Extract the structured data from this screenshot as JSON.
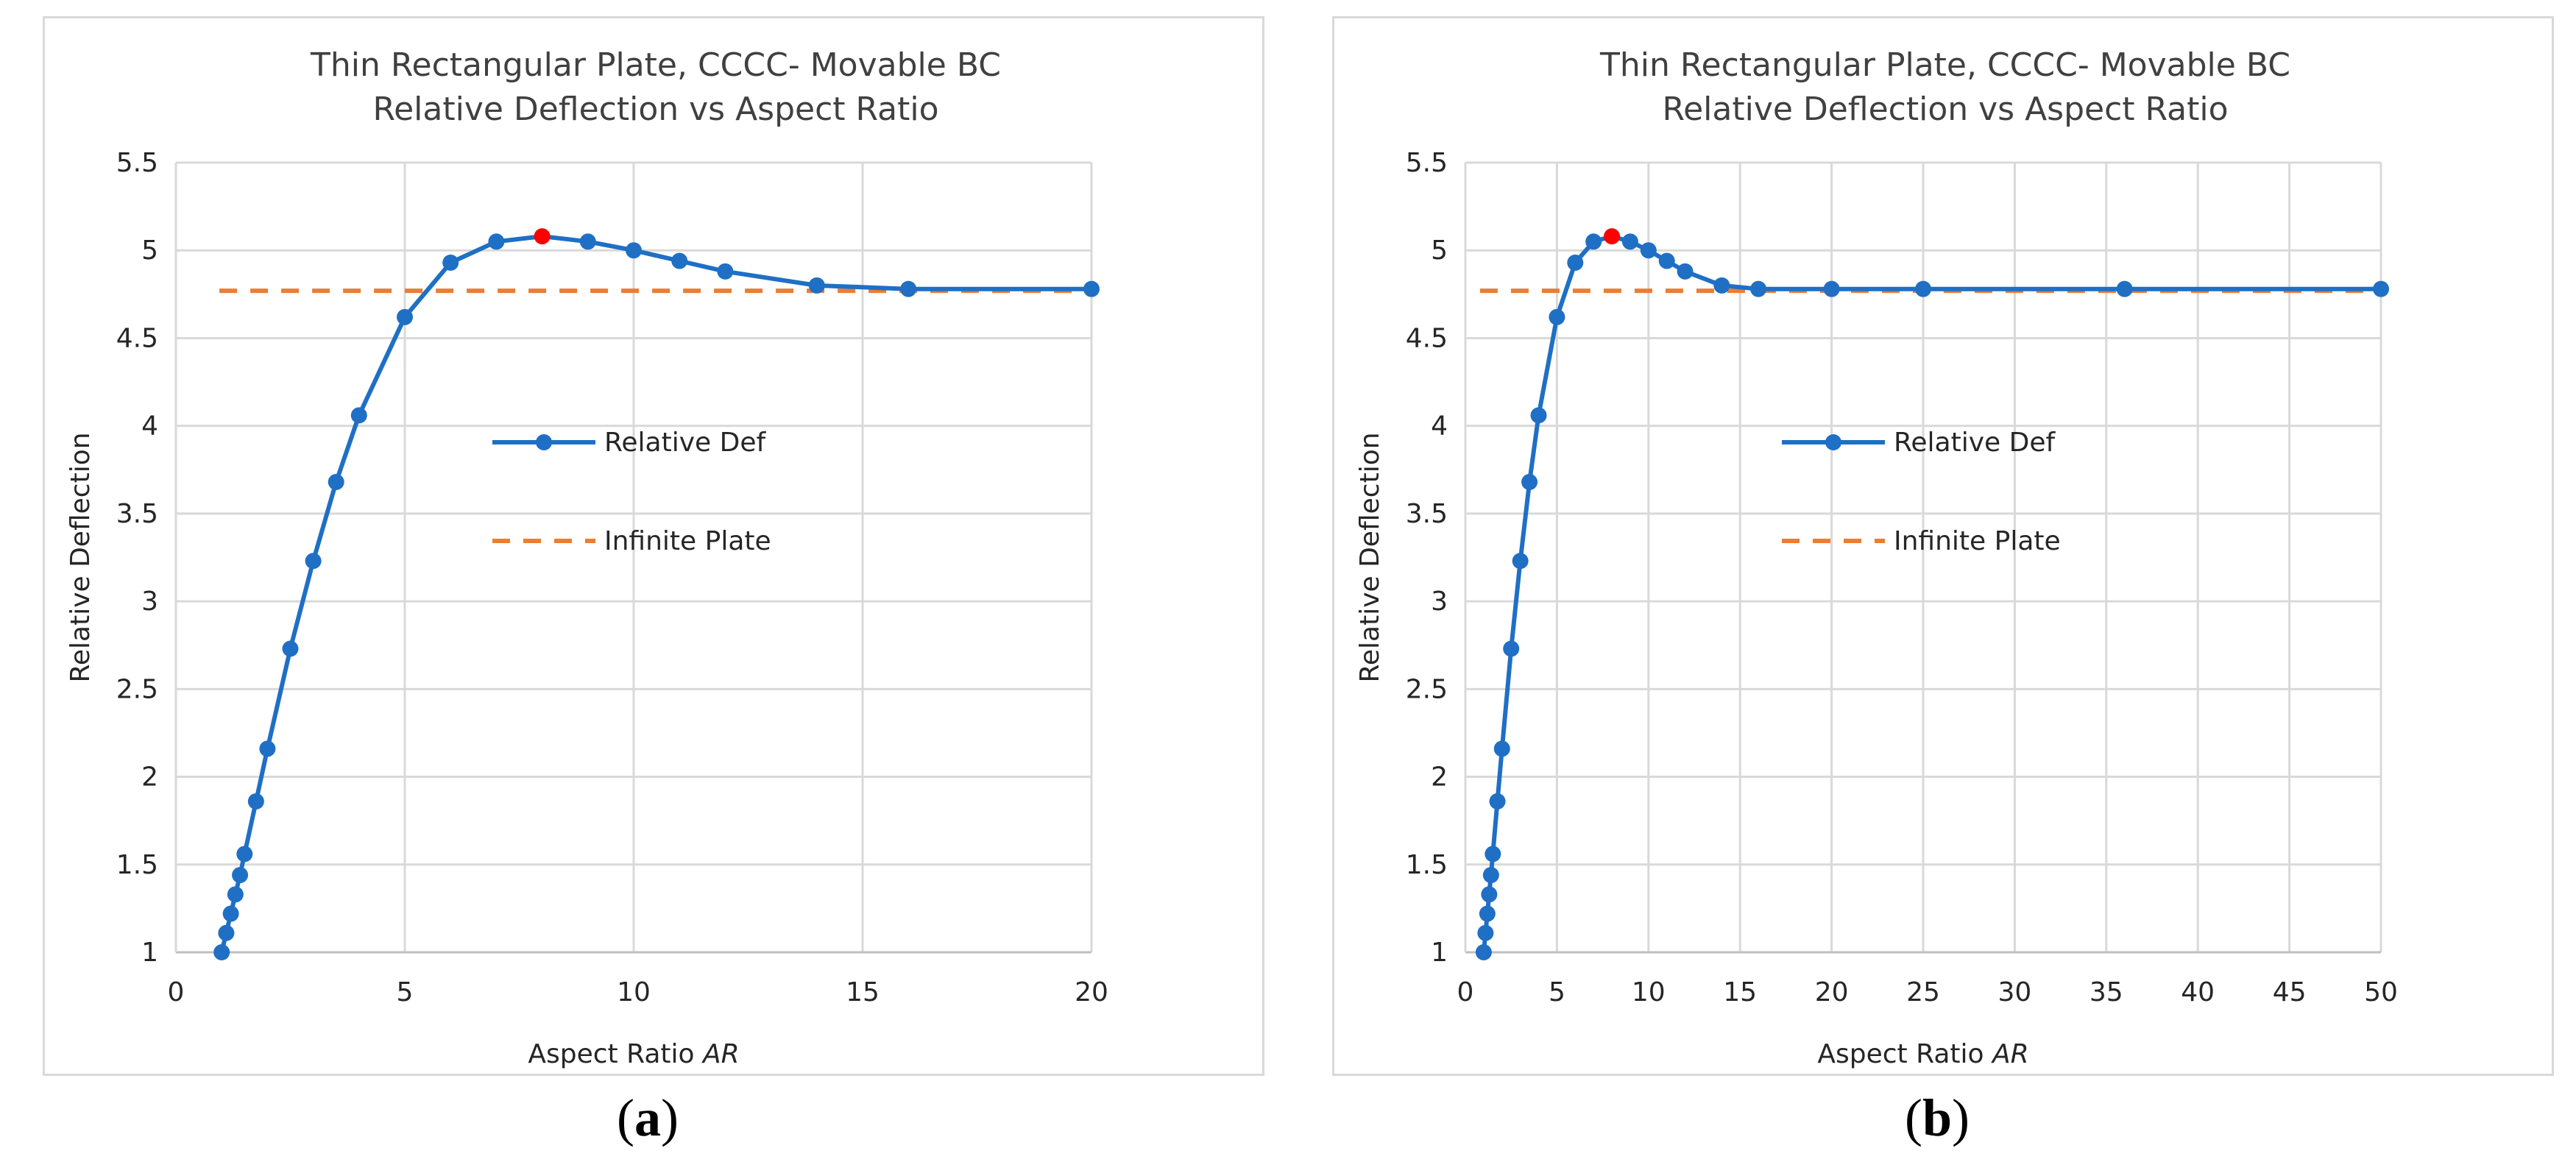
{
  "chart_data": [
    {
      "type": "line",
      "panel_label": "a",
      "title_line1": "Thin Rectangular Plate, CCCC- Movable BC",
      "title_line2": "Relative Deflection vs Aspect Ratio",
      "xlabel": "Aspect Ratio",
      "xlabel_italic": "AR",
      "ylabel": "Relative Deflection",
      "xlim": [
        0,
        20
      ],
      "ylim": [
        1,
        5.5
      ],
      "xticks": [
        0,
        5,
        10,
        15,
        20
      ],
      "xtick_labels": [
        "0",
        "5",
        "10",
        "15",
        "20"
      ],
      "yticks": [
        1,
        1.5,
        2,
        2.5,
        3,
        3.5,
        4,
        4.5,
        5,
        5.5
      ],
      "ytick_labels": [
        "1",
        "1.5",
        "2",
        "2.5",
        "3",
        "3.5",
        "4",
        "4.5",
        "5",
        "5.5"
      ],
      "grid": true,
      "legend_position": "center",
      "series": [
        {
          "name": "Relative Def",
          "style": "solid-markers",
          "color": "#1F6FC5",
          "x": [
            1,
            1.1,
            1.2,
            1.3,
            1.4,
            1.5,
            1.75,
            2,
            2.5,
            3,
            3.5,
            4,
            5,
            6,
            7,
            8,
            9,
            10,
            11,
            12,
            14,
            16,
            20
          ],
          "y": [
            1.0,
            1.11,
            1.22,
            1.33,
            1.44,
            1.56,
            1.86,
            2.16,
            2.73,
            3.23,
            3.68,
            4.06,
            4.62,
            4.93,
            5.05,
            5.08,
            5.05,
            5.0,
            4.94,
            4.88,
            4.8,
            4.78,
            4.78
          ],
          "highlight_index": 15,
          "highlight_color": "#FF0000"
        },
        {
          "name": "Infinite Plate",
          "style": "dashed",
          "color": "#ED7D31",
          "x": [
            0.95,
            20
          ],
          "y": [
            4.77,
            4.77
          ]
        }
      ]
    },
    {
      "type": "line",
      "panel_label": "b",
      "title_line1": "Thin Rectangular Plate, CCCC- Movable BC",
      "title_line2": "Relative Deflection vs Aspect Ratio",
      "xlabel": "Aspect Ratio",
      "xlabel_italic": "AR",
      "ylabel": "Relative Deflection",
      "xlim": [
        0,
        50
      ],
      "ylim": [
        1,
        5.5
      ],
      "xticks": [
        0,
        5,
        10,
        15,
        20,
        25,
        30,
        35,
        40,
        45,
        50
      ],
      "xtick_labels": [
        "0",
        "5",
        "10",
        "15",
        "20",
        "25",
        "30",
        "35",
        "40",
        "45",
        "50"
      ],
      "yticks": [
        1,
        1.5,
        2,
        2.5,
        3,
        3.5,
        4,
        4.5,
        5,
        5.5
      ],
      "ytick_labels": [
        "1",
        "1.5",
        "2",
        "2.5",
        "3",
        "3.5",
        "4",
        "4.5",
        "5",
        "5.5"
      ],
      "grid": true,
      "legend_position": "center",
      "series": [
        {
          "name": "Relative Def",
          "style": "solid-markers",
          "color": "#1F6FC5",
          "x": [
            1,
            1.1,
            1.2,
            1.3,
            1.4,
            1.5,
            1.75,
            2,
            2.5,
            3,
            3.5,
            4,
            5,
            6,
            7,
            8,
            9,
            10,
            11,
            12,
            14,
            16,
            20,
            25,
            36,
            50
          ],
          "y": [
            1.0,
            1.11,
            1.22,
            1.33,
            1.44,
            1.56,
            1.86,
            2.16,
            2.73,
            3.23,
            3.68,
            4.06,
            4.62,
            4.93,
            5.05,
            5.08,
            5.05,
            5.0,
            4.94,
            4.88,
            4.8,
            4.78,
            4.78,
            4.78,
            4.78,
            4.78
          ],
          "highlight_index": 15,
          "highlight_color": "#FF0000"
        },
        {
          "name": "Infinite Plate",
          "style": "dashed",
          "color": "#ED7D31",
          "x": [
            0.8,
            50
          ],
          "y": [
            4.77,
            4.77
          ]
        }
      ]
    }
  ],
  "captions": [
    {
      "open": "(",
      "letter": "a",
      "close": ")"
    },
    {
      "open": "(",
      "letter": "b",
      "close": ")"
    }
  ]
}
